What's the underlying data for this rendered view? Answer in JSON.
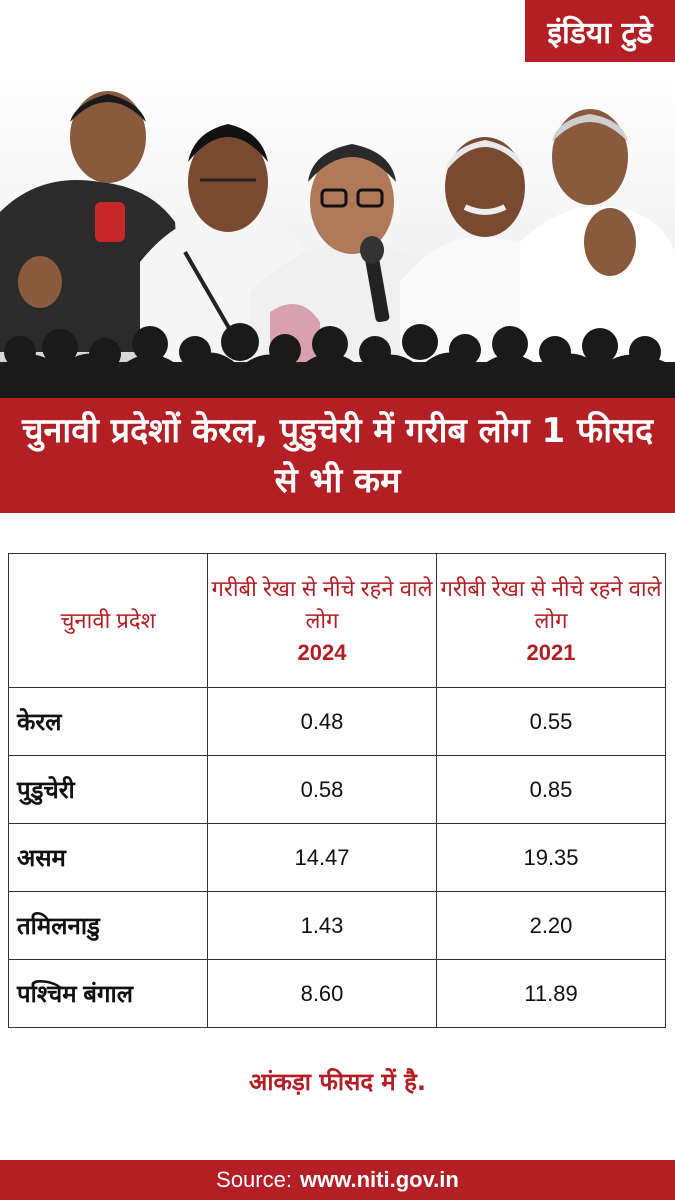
{
  "brand": "इंडिया टुडे",
  "headline": "चुनावी प्रदेशों केरल, पुडुचेरी में गरीब लोग 1 फीसद से भी कम",
  "table": {
    "col_state": "चुनावी प्रदेश",
    "col_2024": "गरीबी रेखा से नीचे रहने वाले लोग",
    "year_2024": "2024",
    "col_2021": "गरीबी रेखा से नीचे रहने वाले लोग",
    "year_2021": "2021"
  },
  "chart_data": {
    "type": "table",
    "title": "चुनावी प्रदेशों केरल, पुडुचेरी में गरीब लोग 1 फीसद से भी कम",
    "columns": [
      "चुनावी प्रदेश",
      "गरीबी रेखा से नीचे रहने वाले लोग 2024",
      "गरीबी रेखा से नीचे रहने वाले लोग 2021"
    ],
    "rows": [
      {
        "state": "केरल",
        "v2024": "0.48",
        "v2021": "0.55"
      },
      {
        "state": "पुडुचेरी",
        "v2024": "0.58",
        "v2021": "0.85"
      },
      {
        "state": "असम",
        "v2024": "14.47",
        "v2021": "19.35"
      },
      {
        "state": "तमिलनाडु",
        "v2024": "1.43",
        "v2021": "2.20"
      },
      {
        "state": "पश्चिम बंगाल",
        "v2024": "8.60",
        "v2021": "11.89"
      }
    ]
  },
  "note": "आंकड़ा फीसद में है.",
  "source": {
    "label": "Source:",
    "url": "www.niti.gov.in"
  },
  "colors": {
    "accent": "#b31f24"
  }
}
